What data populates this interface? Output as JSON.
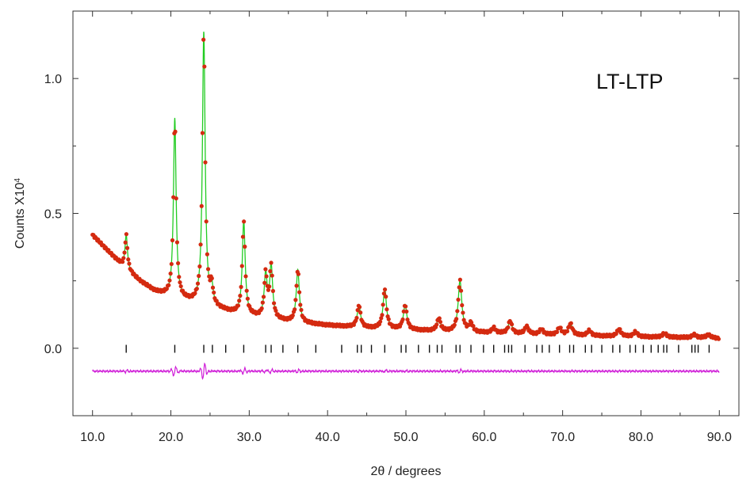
{
  "chart_data": {
    "type": "scatter",
    "title": "",
    "annotation": "LT-LTP",
    "xlabel": "2θ / degrees",
    "ylabel": "Counts  X10",
    "ylabel_exponent": "4",
    "xlim": [
      7.5,
      92.5
    ],
    "ylim": [
      -0.25,
      1.25
    ],
    "x_ticks": [
      10,
      20,
      30,
      40,
      50,
      60,
      70,
      80,
      90
    ],
    "x_tick_labels": [
      "10.0",
      "20.0",
      "30.0",
      "40.0",
      "50.0",
      "60.0",
      "70.0",
      "80.0",
      "90.0"
    ],
    "y_ticks": [
      0,
      0.5,
      1.0
    ],
    "y_tick_labels": [
      "0.0",
      "0.5",
      "1.0"
    ],
    "grid": false,
    "colors": {
      "observed": "#d42a10",
      "calculated": "#22cc22",
      "difference": "#d020d8",
      "reflections": "#111111"
    },
    "background": [
      [
        10,
        0.42
      ],
      [
        12,
        0.36
      ],
      [
        14,
        0.3
      ],
      [
        16,
        0.25
      ],
      [
        18,
        0.21
      ],
      [
        20,
        0.19
      ],
      [
        24,
        0.16
      ],
      [
        28,
        0.13
      ],
      [
        32,
        0.11
      ],
      [
        36,
        0.095
      ],
      [
        40,
        0.085
      ],
      [
        45,
        0.075
      ],
      [
        50,
        0.068
      ],
      [
        55,
        0.062
      ],
      [
        60,
        0.057
      ],
      [
        65,
        0.052
      ],
      [
        70,
        0.048
      ],
      [
        75,
        0.045
      ],
      [
        80,
        0.042
      ],
      [
        85,
        0.04
      ],
      [
        90,
        0.037
      ]
    ],
    "peaks": [
      {
        "x": 14.3,
        "y": 0.42
      },
      {
        "x": 20.5,
        "y": 0.85
      },
      {
        "x": 24.2,
        "y": 1.17
      },
      {
        "x": 25.2,
        "y": 0.22
      },
      {
        "x": 29.3,
        "y": 0.47
      },
      {
        "x": 32.1,
        "y": 0.27
      },
      {
        "x": 32.8,
        "y": 0.3
      },
      {
        "x": 36.2,
        "y": 0.29
      },
      {
        "x": 44.0,
        "y": 0.16
      },
      {
        "x": 47.3,
        "y": 0.22
      },
      {
        "x": 49.9,
        "y": 0.16
      },
      {
        "x": 54.2,
        "y": 0.11
      },
      {
        "x": 56.9,
        "y": 0.25
      },
      {
        "x": 58.3,
        "y": 0.09
      },
      {
        "x": 61.2,
        "y": 0.075
      },
      {
        "x": 63.3,
        "y": 0.1
      },
      {
        "x": 65.4,
        "y": 0.08
      },
      {
        "x": 67.3,
        "y": 0.07
      },
      {
        "x": 69.6,
        "y": 0.075
      },
      {
        "x": 71.0,
        "y": 0.09
      },
      {
        "x": 73.4,
        "y": 0.065
      },
      {
        "x": 77.2,
        "y": 0.07
      },
      {
        "x": 79.3,
        "y": 0.06
      },
      {
        "x": 83.0,
        "y": 0.055
      },
      {
        "x": 86.8,
        "y": 0.05
      },
      {
        "x": 88.6,
        "y": 0.05
      }
    ],
    "reflection_markers_y": -0.002,
    "reflections": [
      14.3,
      20.5,
      24.2,
      25.3,
      27.0,
      29.3,
      32.1,
      32.8,
      34.3,
      36.2,
      38.5,
      41.8,
      43.8,
      44.3,
      45.6,
      47.3,
      49.4,
      50.0,
      51.6,
      53.0,
      54.0,
      54.6,
      56.4,
      56.9,
      58.3,
      59.9,
      61.2,
      62.6,
      63.1,
      63.5,
      65.2,
      66.7,
      67.4,
      68.3,
      69.6,
      70.9,
      71.4,
      72.9,
      73.7,
      75.0,
      76.4,
      77.3,
      78.6,
      79.3,
      80.3,
      81.3,
      82.2,
      82.9,
      83.3,
      84.8,
      86.5,
      86.9,
      87.3,
      88.7
    ],
    "difference_offset": -0.085
  }
}
